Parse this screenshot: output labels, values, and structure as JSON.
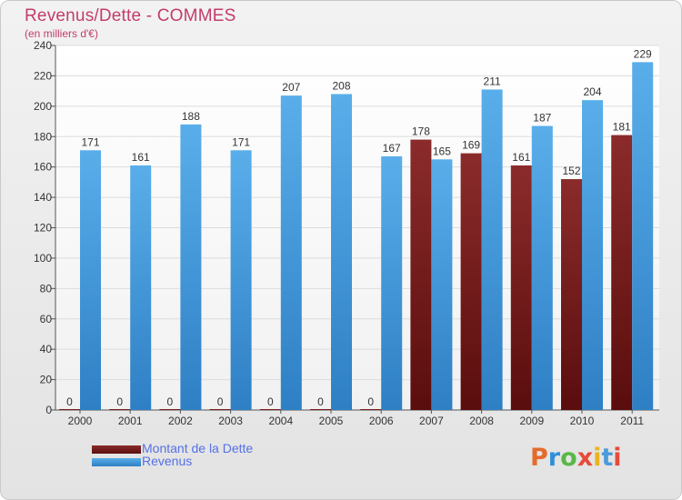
{
  "chart_data": {
    "type": "bar",
    "title": "Revenus/Dette - COMMES",
    "subtitle": "(en milliers d'€)",
    "categories": [
      "2000",
      "2001",
      "2002",
      "2003",
      "2004",
      "2005",
      "2006",
      "2007",
      "2008",
      "2009",
      "2010",
      "2011"
    ],
    "series": [
      {
        "name": "Montant de la Dette",
        "values": [
          0,
          0,
          0,
          0,
          0,
          0,
          0,
          178,
          169,
          161,
          152,
          181
        ],
        "color": "#7a1d1d"
      },
      {
        "name": "Revenus",
        "values": [
          171,
          161,
          188,
          171,
          207,
          208,
          167,
          165,
          211,
          187,
          204,
          229
        ],
        "color": "#4fa3e3"
      }
    ],
    "ylim": [
      0,
      240
    ],
    "yticks": [
      0,
      20,
      40,
      60,
      80,
      100,
      120,
      140,
      160,
      180,
      200,
      220,
      240
    ],
    "grid": true,
    "legend_position": "bottom-left"
  },
  "logo": {
    "text": "Proxiti",
    "letters": [
      "P",
      "r",
      "o",
      "x",
      "i",
      "t",
      "i"
    ],
    "colors": [
      "#e46b2b",
      "#2f8fd9",
      "#57b847",
      "#e64b3c",
      "#e8b422",
      "#4a9bd9",
      "#e64b3c"
    ]
  }
}
